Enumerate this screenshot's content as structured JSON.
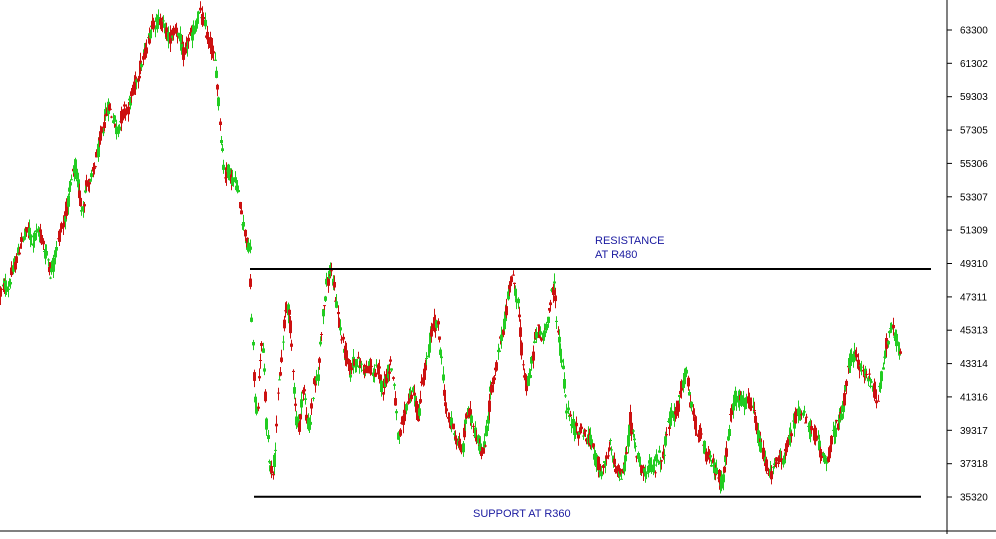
{
  "chart_data": {
    "type": "candlestick",
    "title": "",
    "xlabel": "",
    "ylabel": "",
    "ylim": [
      34620,
      65000
    ],
    "grid": false,
    "y_axis_side": "right",
    "yticks": [
      63300,
      61302,
      59303,
      57305,
      55306,
      53307,
      51309,
      49310,
      47311,
      45313,
      43314,
      41316,
      39317,
      37318,
      35320
    ],
    "colors": {
      "up": "#22cc22",
      "down": "#cc1111",
      "lines": "#000000",
      "annotations": "#1a1aa0"
    },
    "segments": [
      {
        "description_x": [
          0,
          50
        ],
        "path": [
          [
            0,
            47500
          ],
          [
            5,
            48000
          ],
          [
            8,
            47900
          ],
          [
            11,
            48600
          ],
          [
            16,
            49500
          ],
          [
            20,
            50500
          ],
          [
            24,
            50900
          ],
          [
            28,
            51300
          ],
          [
            32,
            50700
          ],
          [
            36,
            51000
          ],
          [
            40,
            51200
          ],
          [
            44,
            50100
          ],
          [
            48,
            49500
          ],
          [
            50,
            48800
          ]
        ]
      },
      {
        "description_x": [
          50,
          100
        ],
        "path": [
          [
            50,
            48800
          ],
          [
            54,
            49600
          ],
          [
            57,
            50500
          ],
          [
            60,
            51400
          ],
          [
            63,
            51700
          ],
          [
            66,
            52500
          ],
          [
            69,
            53500
          ],
          [
            72,
            54500
          ],
          [
            75,
            55200
          ],
          [
            78,
            53800
          ],
          [
            81,
            52600
          ],
          [
            84,
            53200
          ],
          [
            87,
            54300
          ],
          [
            90,
            54000
          ],
          [
            93,
            54800
          ],
          [
            96,
            55600
          ],
          [
            100,
            56800
          ]
        ]
      },
      {
        "description_x": [
          100,
          152
        ],
        "path": [
          [
            100,
            56800
          ],
          [
            104,
            57900
          ],
          [
            108,
            58800
          ],
          [
            112,
            58200
          ],
          [
            116,
            57300
          ],
          [
            120,
            57900
          ],
          [
            124,
            58500
          ],
          [
            128,
            58700
          ],
          [
            132,
            59500
          ],
          [
            136,
            60300
          ],
          [
            140,
            61100
          ],
          [
            144,
            61800
          ],
          [
            148,
            62700
          ],
          [
            152,
            63800
          ]
        ]
      },
      {
        "description_x": [
          152,
          250
        ],
        "path": [
          [
            152,
            63800
          ],
          [
            156,
            63700
          ],
          [
            160,
            63900
          ],
          [
            164,
            63500
          ],
          [
            168,
            62800
          ],
          [
            172,
            63100
          ],
          [
            176,
            63500
          ],
          [
            180,
            62500
          ],
          [
            184,
            61700
          ],
          [
            188,
            62700
          ],
          [
            192,
            63000
          ],
          [
            196,
            63800
          ],
          [
            200,
            64300
          ],
          [
            204,
            63600
          ],
          [
            208,
            62700
          ],
          [
            212,
            62100
          ],
          [
            216,
            60800
          ],
          [
            220,
            57500
          ],
          [
            224,
            54600
          ],
          [
            228,
            54900
          ],
          [
            232,
            54300
          ],
          [
            236,
            54100
          ],
          [
            240,
            52800
          ],
          [
            244,
            51300
          ],
          [
            248,
            50200
          ],
          [
            250,
            50200
          ]
        ]
      },
      {
        "description_x": [
          250,
          330
        ],
        "path": [
          [
            250,
            48000
          ],
          [
            252,
            45000
          ],
          [
            254,
            42000
          ],
          [
            256,
            40500
          ],
          [
            258,
            41200
          ],
          [
            260,
            43800
          ],
          [
            262,
            44500
          ],
          [
            264,
            42500
          ],
          [
            266,
            40000
          ],
          [
            268,
            38200
          ],
          [
            270,
            37200
          ],
          [
            272,
            36800
          ],
          [
            274,
            37600
          ],
          [
            276,
            39500
          ],
          [
            278,
            41700
          ],
          [
            280,
            42800
          ],
          [
            282,
            44100
          ],
          [
            284,
            45800
          ],
          [
            286,
            47000
          ],
          [
            288,
            46500
          ],
          [
            290,
            45500
          ],
          [
            292,
            43800
          ],
          [
            294,
            41500
          ],
          [
            296,
            40100
          ],
          [
            298,
            39400
          ],
          [
            300,
            40000
          ],
          [
            302,
            41800
          ],
          [
            304,
            41600
          ],
          [
            306,
            40400
          ],
          [
            308,
            39400
          ],
          [
            310,
            39800
          ],
          [
            312,
            41200
          ],
          [
            314,
            42200
          ],
          [
            316,
            42100
          ],
          [
            318,
            42800
          ],
          [
            320,
            44500
          ],
          [
            322,
            46000
          ],
          [
            324,
            47000
          ],
          [
            326,
            47900
          ],
          [
            328,
            48500
          ],
          [
            330,
            48800
          ]
        ]
      },
      {
        "description_x": [
          330,
          430
        ],
        "path": [
          [
            330,
            48800
          ],
          [
            334,
            47800
          ],
          [
            338,
            46100
          ],
          [
            342,
            44600
          ],
          [
            346,
            43800
          ],
          [
            350,
            42800
          ],
          [
            354,
            43600
          ],
          [
            358,
            43300
          ],
          [
            362,
            43200
          ],
          [
            366,
            42900
          ],
          [
            370,
            43100
          ],
          [
            374,
            42700
          ],
          [
            378,
            43000
          ],
          [
            382,
            41800
          ],
          [
            386,
            42500
          ],
          [
            390,
            43400
          ],
          [
            394,
            42000
          ],
          [
            398,
            38500
          ],
          [
            402,
            39600
          ],
          [
            406,
            40800
          ],
          [
            410,
            41600
          ],
          [
            414,
            41400
          ],
          [
            418,
            40100
          ],
          [
            422,
            42400
          ],
          [
            426,
            43200
          ],
          [
            430,
            44800
          ]
        ]
      },
      {
        "description_x": [
          430,
          510
        ],
        "path": [
          [
            430,
            44800
          ],
          [
            434,
            45800
          ],
          [
            438,
            45400
          ],
          [
            442,
            43000
          ],
          [
            446,
            40200
          ],
          [
            450,
            39900
          ],
          [
            454,
            39300
          ],
          [
            458,
            38500
          ],
          [
            462,
            38000
          ],
          [
            466,
            40400
          ],
          [
            470,
            40200
          ],
          [
            474,
            39300
          ],
          [
            478,
            38800
          ],
          [
            482,
            37800
          ],
          [
            486,
            39000
          ],
          [
            490,
            41700
          ],
          [
            494,
            42400
          ],
          [
            498,
            43900
          ],
          [
            502,
            45200
          ],
          [
            506,
            46500
          ],
          [
            510,
            48400
          ]
        ]
      },
      {
        "description_x": [
          510,
          590
        ],
        "path": [
          [
            510,
            48400
          ],
          [
            514,
            48200
          ],
          [
            518,
            46600
          ],
          [
            522,
            43600
          ],
          [
            526,
            41800
          ],
          [
            530,
            42800
          ],
          [
            534,
            44600
          ],
          [
            538,
            45400
          ],
          [
            542,
            44700
          ],
          [
            546,
            45600
          ],
          [
            550,
            47000
          ],
          [
            554,
            48100
          ],
          [
            558,
            44800
          ],
          [
            562,
            43300
          ],
          [
            566,
            40700
          ],
          [
            570,
            39900
          ],
          [
            574,
            39500
          ],
          [
            578,
            39200
          ],
          [
            582,
            39400
          ],
          [
            586,
            38900
          ],
          [
            590,
            38600
          ]
        ]
      },
      {
        "description_x": [
          590,
          670
        ],
        "path": [
          [
            590,
            38600
          ],
          [
            594,
            37900
          ],
          [
            598,
            37200
          ],
          [
            602,
            36800
          ],
          [
            606,
            37400
          ],
          [
            610,
            38400
          ],
          [
            614,
            37300
          ],
          [
            618,
            36800
          ],
          [
            622,
            36600
          ],
          [
            626,
            37900
          ],
          [
            630,
            40000
          ],
          [
            634,
            38400
          ],
          [
            638,
            37600
          ],
          [
            642,
            37100
          ],
          [
            646,
            36600
          ],
          [
            650,
            37300
          ],
          [
            654,
            37000
          ],
          [
            658,
            37800
          ],
          [
            662,
            37500
          ],
          [
            666,
            39200
          ],
          [
            670,
            40000
          ]
        ]
      },
      {
        "description_x": [
          670,
          760
        ],
        "path": [
          [
            670,
            40000
          ],
          [
            674,
            40300
          ],
          [
            678,
            40800
          ],
          [
            682,
            42100
          ],
          [
            686,
            42700
          ],
          [
            690,
            41100
          ],
          [
            694,
            39900
          ],
          [
            698,
            39200
          ],
          [
            702,
            38600
          ],
          [
            706,
            37800
          ],
          [
            710,
            37500
          ],
          [
            714,
            37100
          ],
          [
            718,
            36600
          ],
          [
            722,
            36200
          ],
          [
            726,
            37900
          ],
          [
            730,
            40000
          ],
          [
            734,
            41200
          ],
          [
            738,
            41400
          ],
          [
            742,
            40900
          ],
          [
            746,
            41000
          ],
          [
            750,
            40800
          ],
          [
            754,
            40300
          ],
          [
            758,
            38800
          ],
          [
            760,
            38400
          ]
        ]
      },
      {
        "description_x": [
          760,
          840
        ],
        "path": [
          [
            760,
            38400
          ],
          [
            764,
            37600
          ],
          [
            768,
            37000
          ],
          [
            772,
            36700
          ],
          [
            776,
            37300
          ],
          [
            780,
            37600
          ],
          [
            784,
            37700
          ],
          [
            788,
            38600
          ],
          [
            792,
            39400
          ],
          [
            796,
            40300
          ],
          [
            800,
            40600
          ],
          [
            804,
            40000
          ],
          [
            808,
            39500
          ],
          [
            812,
            39200
          ],
          [
            816,
            38900
          ],
          [
            820,
            38000
          ],
          [
            824,
            37800
          ],
          [
            828,
            37700
          ],
          [
            832,
            38900
          ],
          [
            836,
            39500
          ],
          [
            840,
            40000
          ]
        ]
      },
      {
        "description_x": [
          840,
          900
        ],
        "path": [
          [
            840,
            40000
          ],
          [
            844,
            41200
          ],
          [
            848,
            43100
          ],
          [
            852,
            43800
          ],
          [
            856,
            43600
          ],
          [
            860,
            43100
          ],
          [
            864,
            42700
          ],
          [
            868,
            42500
          ],
          [
            872,
            42200
          ],
          [
            876,
            41100
          ],
          [
            880,
            42100
          ],
          [
            884,
            43800
          ],
          [
            888,
            44900
          ],
          [
            892,
            45300
          ],
          [
            896,
            44700
          ],
          [
            900,
            43800
          ]
        ]
      }
    ],
    "annotations": {
      "resistance_line_value": 48980,
      "resistance_label_line1": "RESISTANCE",
      "resistance_label_line2": "AT R480",
      "support_line_value": 35330,
      "support_label": "SUPPORT AT R360"
    }
  }
}
